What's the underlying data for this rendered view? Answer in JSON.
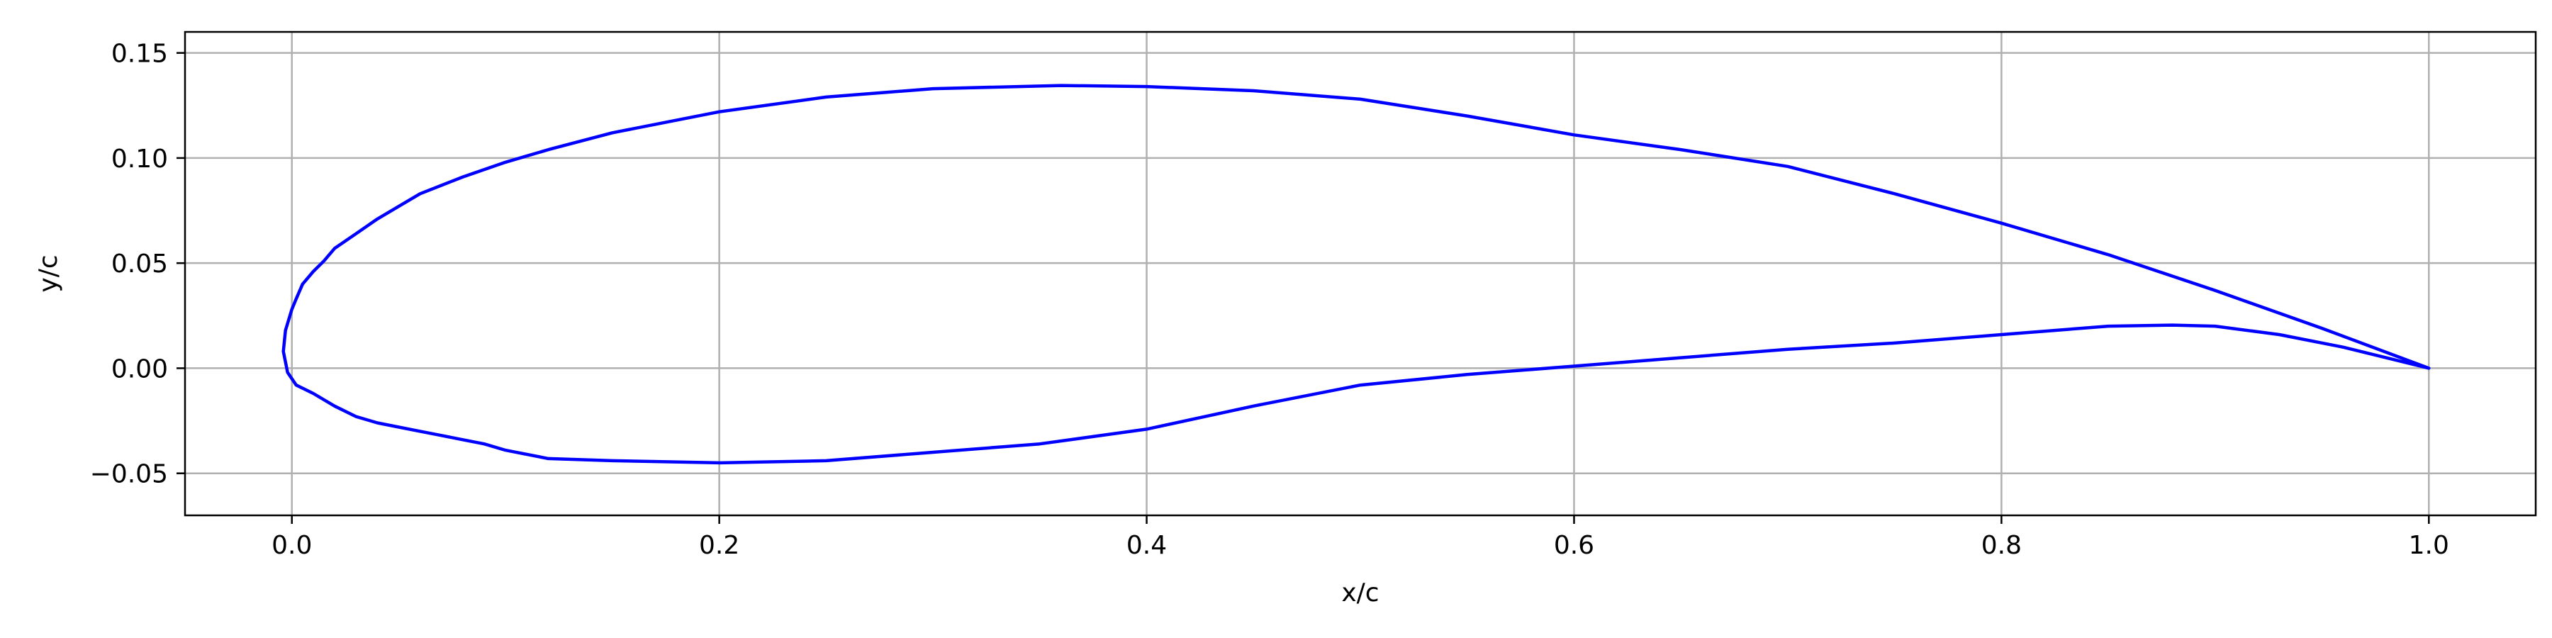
{
  "chart_data": {
    "type": "line",
    "title": "",
    "xlabel": "x/c",
    "ylabel": "y/c",
    "xlim": [
      -0.05,
      1.05
    ],
    "ylim": [
      -0.07,
      0.16
    ],
    "xticks": [
      0.0,
      0.2,
      0.4,
      0.6,
      0.8,
      1.0
    ],
    "xtick_labels": [
      "0.0",
      "0.2",
      "0.4",
      "0.6",
      "0.8",
      "1.0"
    ],
    "yticks": [
      -0.05,
      0.0,
      0.05,
      0.1,
      0.15
    ],
    "ytick_labels": [
      "−0.05",
      "0.00",
      "0.05",
      "0.10",
      "0.15"
    ],
    "grid": true,
    "legend": "none",
    "colors": {
      "line": "#0000ff",
      "grid": "#b0b0b0",
      "axes": "#000000"
    },
    "series": [
      {
        "x": [
          1.0,
          0.95,
          0.9,
          0.85,
          0.8,
          0.75,
          0.7,
          0.65,
          0.6,
          0.55,
          0.5,
          0.45,
          0.4,
          0.36,
          0.3,
          0.25,
          0.2,
          0.15,
          0.12,
          0.1,
          0.08,
          0.06,
          0.05,
          0.04,
          0.03,
          0.02,
          0.015,
          0.01,
          0.005,
          0.002,
          0.0,
          -0.003,
          -0.004,
          -0.002,
          0.002,
          0.01,
          0.02,
          0.03,
          0.04,
          0.05,
          0.06,
          0.07,
          0.08,
          0.09,
          0.1,
          0.12,
          0.15,
          0.2,
          0.25,
          0.3,
          0.35,
          0.4,
          0.45,
          0.5,
          0.55,
          0.6,
          0.65,
          0.7,
          0.75,
          0.8,
          0.85,
          0.88,
          0.9,
          0.93,
          0.96,
          1.0
        ],
        "y": [
          0.0,
          0.019,
          0.037,
          0.054,
          0.069,
          0.083,
          0.096,
          0.104,
          0.111,
          0.12,
          0.128,
          0.132,
          0.134,
          0.1345,
          0.133,
          0.129,
          0.122,
          0.112,
          0.104,
          0.098,
          0.091,
          0.083,
          0.077,
          0.071,
          0.064,
          0.057,
          0.051,
          0.046,
          0.04,
          0.033,
          0.028,
          0.018,
          0.008,
          -0.002,
          -0.008,
          -0.012,
          -0.018,
          -0.023,
          -0.026,
          -0.028,
          -0.03,
          -0.032,
          -0.034,
          -0.036,
          -0.039,
          -0.043,
          -0.044,
          -0.045,
          -0.044,
          -0.04,
          -0.036,
          -0.029,
          -0.018,
          -0.008,
          -0.003,
          0.001,
          0.005,
          0.009,
          0.012,
          0.016,
          0.02,
          0.0205,
          0.02,
          0.016,
          0.01,
          0.0
        ]
      }
    ]
  }
}
